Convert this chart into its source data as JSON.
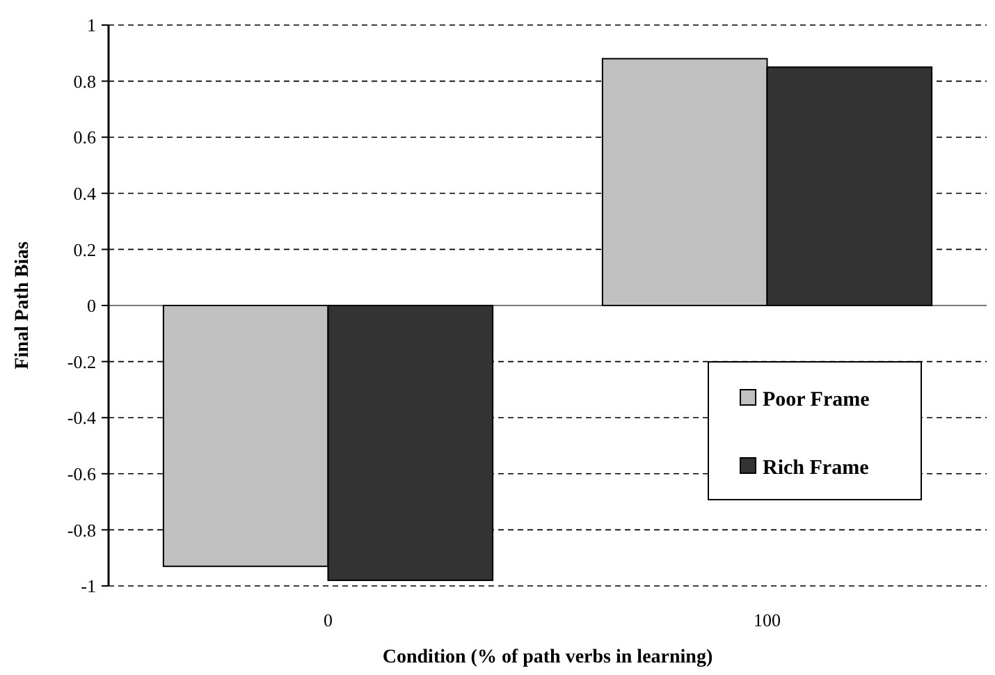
{
  "chart_data": {
    "type": "bar",
    "xlabel": "Condition (% of path verbs in learning)",
    "ylabel": "Final Path Bias",
    "categories": [
      "0",
      "100"
    ],
    "series": [
      {
        "name": "Poor Frame",
        "color": "#c0c0c0",
        "values": [
          -0.93,
          0.88
        ]
      },
      {
        "name": "Rich Frame",
        "color": "#333333",
        "values": [
          -0.98,
          0.85
        ]
      }
    ],
    "ylim": [
      -1,
      1
    ],
    "yticks": [
      -1,
      -0.8,
      -0.6,
      -0.4,
      -0.2,
      0,
      0.2,
      0.4,
      0.6,
      0.8,
      1
    ],
    "grid": "y",
    "legend": "right"
  }
}
